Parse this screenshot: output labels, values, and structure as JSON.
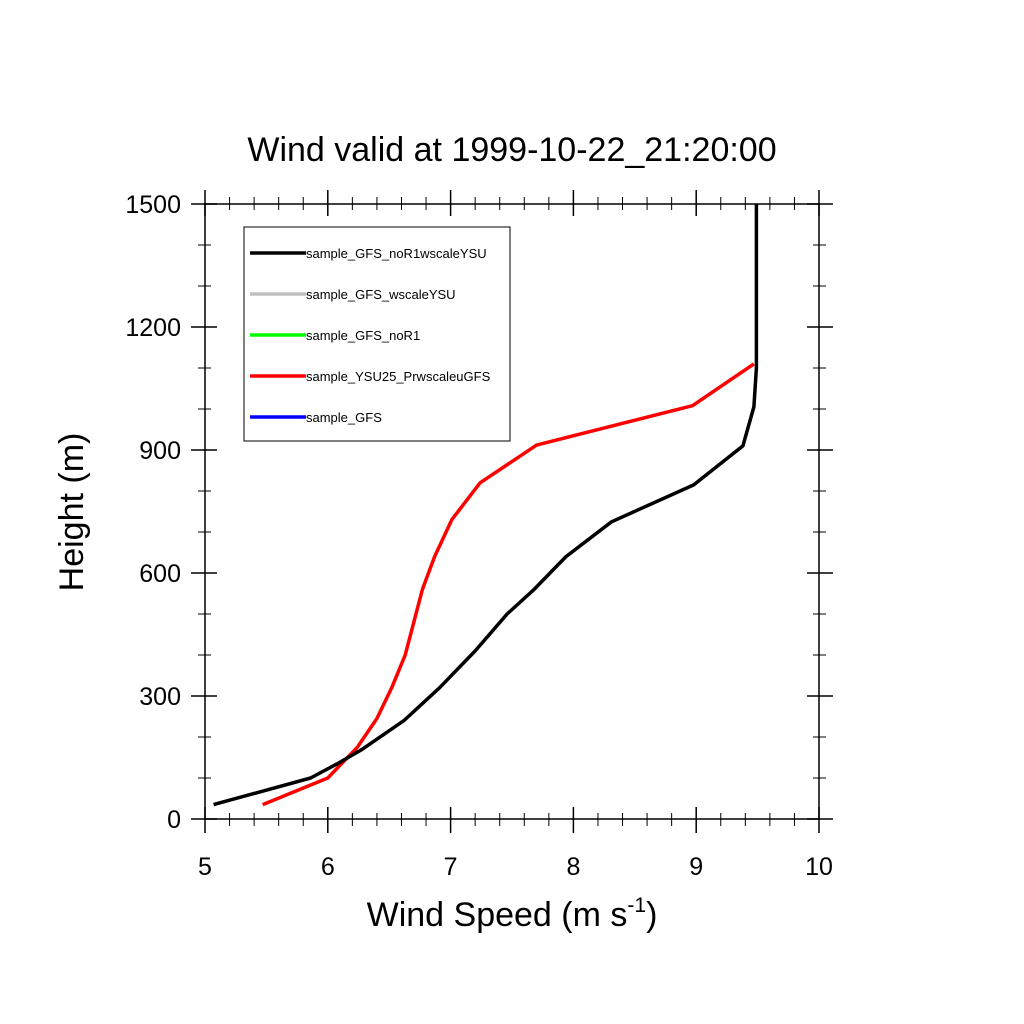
{
  "chart_data": {
    "type": "line",
    "title": "Wind valid at 1999-10-22_21:20:00",
    "xlabel": "Wind Speed (m s",
    "xlabel_sup": "-1",
    "xlabel_close": ")",
    "ylabel": "Height (m)",
    "xlim": [
      5,
      10
    ],
    "ylim": [
      0,
      1500
    ],
    "xticks": [
      5,
      6,
      7,
      8,
      9,
      10
    ],
    "yticks": [
      0,
      300,
      600,
      900,
      1200,
      1500
    ],
    "grid": false,
    "legend_position": "top-left",
    "series": [
      {
        "name": "sample_GFS_noR1wscaleYSU",
        "color": "#000000",
        "x": [
          5.07,
          5.86,
          6.08,
          6.28,
          6.62,
          6.91,
          7.2,
          7.46,
          7.68,
          7.94,
          8.31,
          8.98,
          9.38,
          9.47,
          9.49,
          9.49,
          9.49,
          9.49
        ],
        "y": [
          35,
          100,
          135,
          170,
          240,
          320,
          410,
          500,
          560,
          640,
          725,
          815,
          910,
          1005,
          1100,
          1200,
          1350,
          1500
        ]
      },
      {
        "name": "sample_GFS_wscaleYSU",
        "color": "#c0c0c0",
        "x": [],
        "y": []
      },
      {
        "name": "sample_GFS_noR1",
        "color": "#00ff00",
        "x": [],
        "y": []
      },
      {
        "name": "sample_YSU25_PrwscaleuGFS",
        "color": "#ff0000",
        "x": [
          5.47,
          6.0,
          6.24,
          6.4,
          6.52,
          6.63,
          6.77,
          6.87,
          7.01,
          7.24,
          7.7,
          8.97,
          9.47
        ],
        "y": [
          35,
          100,
          175,
          245,
          320,
          400,
          560,
          640,
          730,
          820,
          912,
          1008,
          1110
        ]
      },
      {
        "name": "sample_GFS",
        "color": "#0000ff",
        "x": [],
        "y": []
      }
    ]
  }
}
